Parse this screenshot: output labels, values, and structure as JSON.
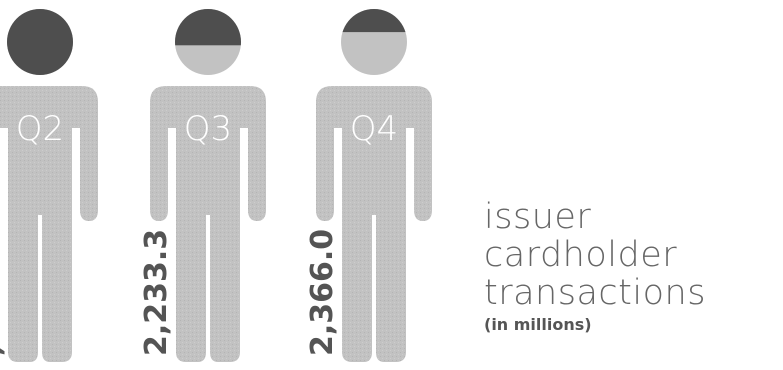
{
  "chart_data": {
    "type": "bar",
    "categories": [
      "Q2",
      "Q3",
      "Q4"
    ],
    "values": [
      null,
      2233.3,
      2366.0
    ],
    "value_labels": [
      "",
      "2,233.3",
      "2,366.0"
    ],
    "head_fill_fraction": [
      1.0,
      0.55,
      0.35
    ],
    "partial_value_label": ",",
    "title_lines": [
      "issuer",
      "cardholder",
      "transactions"
    ],
    "unit": "(in millions)",
    "colors": {
      "figure": "#c2c2c2",
      "head_fill": "#4e4e4e",
      "label_text": "#545454",
      "quarter_text": "#ffffff",
      "title_text": "#666666"
    }
  }
}
